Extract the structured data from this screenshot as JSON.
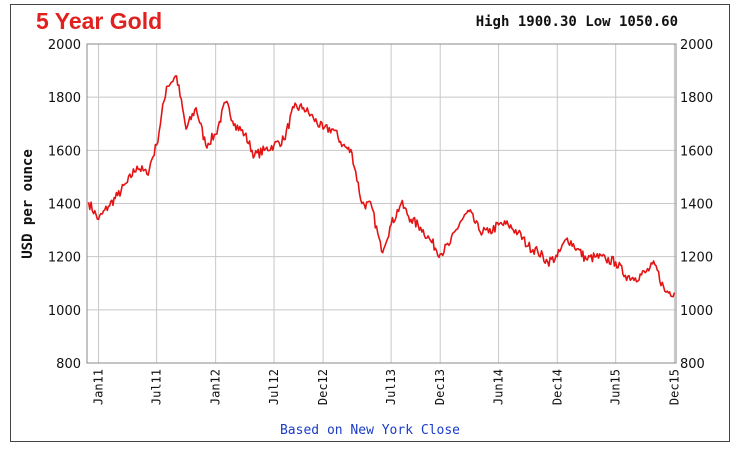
{
  "header": {
    "title": "5 Year Gold",
    "high_low": "High 1900.30 Low 1050.60"
  },
  "footer": {
    "note": "Based on New York Close"
  },
  "colors": {
    "line": "#e41414",
    "title": "#e0211f",
    "grid": "#c8c8c8",
    "footer": "#1a3cc9"
  },
  "chart_data": {
    "type": "line",
    "title": "5 Year Gold",
    "ylabel": "USD per ounce",
    "xlabel": "",
    "ylim": [
      800,
      2000
    ],
    "y_ticks": [
      800,
      1000,
      1200,
      1400,
      1600,
      1800,
      2000
    ],
    "y_tick_labels": [
      "800",
      "1000",
      "1200",
      "1400",
      "1600",
      "1800",
      "2000"
    ],
    "x_ticks": [
      "Jan11",
      "Jul11",
      "Jan12",
      "Jul12",
      "Dec12",
      "Jul13",
      "Dec13",
      "Jun14",
      "Dec14",
      "Jun15",
      "Dec15"
    ],
    "grid": true,
    "right_axis": true,
    "series": [
      {
        "color": "#e41414",
        "x": [
          "2010-12",
          "2011-01",
          "2011-02",
          "2011-03",
          "2011-04",
          "2011-05",
          "2011-06",
          "2011-07",
          "2011-08",
          "2011-09",
          "2011-10",
          "2011-11",
          "2011-12",
          "2012-01",
          "2012-02",
          "2012-03",
          "2012-04",
          "2012-05",
          "2012-06",
          "2012-07",
          "2012-08",
          "2012-09",
          "2012-10",
          "2012-11",
          "2012-12",
          "2013-01",
          "2013-02",
          "2013-03",
          "2013-04",
          "2013-05",
          "2013-06",
          "2013-07",
          "2013-08",
          "2013-09",
          "2013-10",
          "2013-11",
          "2013-12",
          "2014-01",
          "2014-02",
          "2014-03",
          "2014-04",
          "2014-05",
          "2014-06",
          "2014-07",
          "2014-08",
          "2014-09",
          "2014-10",
          "2014-11",
          "2014-12",
          "2015-01",
          "2015-02",
          "2015-03",
          "2015-04",
          "2015-05",
          "2015-06",
          "2015-07",
          "2015-08",
          "2015-09",
          "2015-10",
          "2015-11",
          "2015-12"
        ],
        "values": [
          1405,
          1340,
          1390,
          1430,
          1480,
          1540,
          1510,
          1620,
          1840,
          1880,
          1680,
          1760,
          1620,
          1660,
          1780,
          1700,
          1660,
          1580,
          1600,
          1620,
          1640,
          1760,
          1760,
          1720,
          1680,
          1680,
          1620,
          1590,
          1400,
          1390,
          1220,
          1320,
          1400,
          1340,
          1310,
          1260,
          1210,
          1250,
          1330,
          1370,
          1300,
          1290,
          1320,
          1320,
          1290,
          1240,
          1220,
          1180,
          1200,
          1270,
          1230,
          1190,
          1200,
          1190,
          1180,
          1130,
          1120,
          1140,
          1170,
          1070,
          1065
        ]
      }
    ]
  }
}
